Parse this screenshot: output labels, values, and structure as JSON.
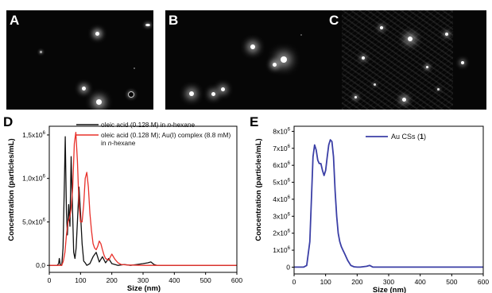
{
  "panels": {
    "a": "A",
    "b": "B",
    "c": "C",
    "d": "D",
    "e": "E"
  },
  "colors": {
    "black_series": "#111111",
    "red_series": "#e8302a",
    "blue_series": "#3b3fa6"
  },
  "chart_data": [
    {
      "type": "line",
      "panel": "D",
      "xlabel": "Size (nm)",
      "ylabel": "Concentration (particles/mL)",
      "xlim": [
        0,
        600
      ],
      "ylim": [
        -80000,
        1600000
      ],
      "x_ticks": [
        0,
        100,
        200,
        300,
        400,
        500,
        600
      ],
      "y_ticks": [
        {
          "value": 0,
          "label": "0,0"
        },
        {
          "value": 500000,
          "label": "5,0x10"
        },
        {
          "value": 1000000,
          "label": "1,0x10"
        },
        {
          "value": 1500000,
          "label": "1,5x10"
        }
      ],
      "y_tick_exponent": "6",
      "legend_position": "top-right",
      "series": [
        {
          "name": "oleic acid (0.128 M) in n-hexane",
          "legend_lines": [
            "oleic acid (0.128 M) in ",
            "n",
            "-hexane"
          ],
          "color": "#111111",
          "x": [
            0,
            25,
            30,
            32,
            35,
            40,
            44,
            48,
            51,
            55,
            58,
            62,
            66,
            70,
            74,
            78,
            82,
            86,
            90,
            95,
            100,
            105,
            110,
            115,
            120,
            130,
            140,
            150,
            160,
            170,
            180,
            190,
            200,
            210,
            220,
            240,
            260,
            280,
            300,
            315,
            325,
            335,
            345,
            360,
            400,
            600
          ],
          "y": [
            0,
            0,
            20000,
            80000,
            10000,
            0,
            200000,
            900000,
            1480000,
            600000,
            350000,
            700000,
            450000,
            1250000,
            700000,
            150000,
            80000,
            200000,
            500000,
            900000,
            600000,
            250000,
            50000,
            30000,
            0,
            20000,
            100000,
            150000,
            40000,
            100000,
            30000,
            80000,
            20000,
            10000,
            0,
            10000,
            0,
            10000,
            20000,
            30000,
            40000,
            10000,
            0,
            0,
            0,
            0
          ]
        },
        {
          "name": "oleic acid (0.128 M); Au(I) complex (8.8 mM) in n-hexane",
          "legend_lines": [
            "oleic acid (0.128 M); Au(I) complex (8.8 mM)",
            "in ",
            "n",
            "-hexane"
          ],
          "color": "#e8302a",
          "x": [
            0,
            40,
            45,
            50,
            55,
            60,
            65,
            70,
            75,
            80,
            85,
            90,
            95,
            100,
            105,
            110,
            115,
            120,
            125,
            130,
            135,
            140,
            145,
            150,
            155,
            160,
            165,
            170,
            175,
            180,
            190,
            200,
            210,
            220,
            230,
            250,
            300,
            400,
            600
          ],
          "y": [
            0,
            0,
            50000,
            150000,
            350000,
            500000,
            550000,
            650000,
            900000,
            1400000,
            1530000,
            1200000,
            700000,
            500000,
            500000,
            700000,
            1000000,
            1070000,
            900000,
            600000,
            400000,
            250000,
            200000,
            180000,
            220000,
            280000,
            250000,
            180000,
            120000,
            80000,
            60000,
            130000,
            70000,
            30000,
            10000,
            5000,
            0,
            0,
            0
          ]
        }
      ]
    },
    {
      "type": "line",
      "panel": "E",
      "xlabel": "Size (nm)",
      "ylabel": "Concentration (particles/mL)",
      "xlim": [
        0,
        600
      ],
      "ylim": [
        -400000,
        8300000
      ],
      "x_ticks": [
        0,
        100,
        200,
        300,
        400,
        500,
        600
      ],
      "y_ticks": [
        {
          "value": 0,
          "label": "0"
        },
        {
          "value": 1000000,
          "label": "1x10"
        },
        {
          "value": 2000000,
          "label": "2x10"
        },
        {
          "value": 3000000,
          "label": "3x10"
        },
        {
          "value": 4000000,
          "label": "4x10"
        },
        {
          "value": 5000000,
          "label": "5x10"
        },
        {
          "value": 6000000,
          "label": "6x10"
        },
        {
          "value": 7000000,
          "label": "7x10"
        },
        {
          "value": 8000000,
          "label": "8x10"
        }
      ],
      "y_tick_exponent": "6",
      "legend_position": "top-right",
      "series": [
        {
          "name": "Au CSs (1)",
          "legend_lines": [
            "Au CSs (",
            "1",
            ")"
          ],
          "color": "#3b3fa6",
          "x": [
            0,
            30,
            40,
            50,
            55,
            60,
            65,
            70,
            75,
            80,
            85,
            90,
            95,
            100,
            105,
            110,
            115,
            120,
            125,
            130,
            135,
            140,
            145,
            150,
            155,
            160,
            170,
            180,
            190,
            200,
            210,
            230,
            240,
            250,
            300,
            600
          ],
          "y": [
            0,
            0,
            100000,
            1500000,
            4000000,
            6500000,
            7200000,
            6900000,
            6300000,
            6100000,
            6100000,
            5700000,
            5400000,
            5700000,
            6500000,
            7200000,
            7500000,
            7400000,
            6500000,
            4500000,
            3000000,
            2000000,
            1500000,
            1200000,
            1000000,
            800000,
            400000,
            100000,
            20000,
            0,
            0,
            50000,
            100000,
            0,
            0,
            0
          ]
        }
      ]
    }
  ]
}
